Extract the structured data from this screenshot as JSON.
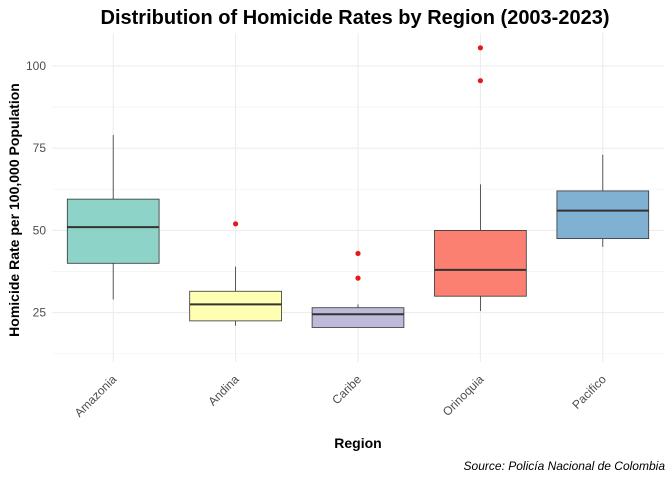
{
  "chart_data": {
    "type": "boxplot",
    "title": "Distribution of Homicide Rates by Region (2003-2023)",
    "xlabel": "Region",
    "ylabel": "Homicide Rate per 100,000 Population",
    "caption": "Source: Policía Nacional de Colombia",
    "ylim": [
      10,
      110
    ],
    "yticks": [
      25,
      50,
      75,
      100
    ],
    "grid": true,
    "legend": "none",
    "outlier_color": "#e31a1c",
    "categories": [
      "Amazonia",
      "Andina",
      "Caribe",
      "Orinoquia",
      "Pacifico"
    ],
    "boxes": [
      {
        "category": "Amazonia",
        "whisker_low": 29,
        "q1": 40,
        "median": 51,
        "q3": 59.5,
        "whisker_high": 79,
        "outliers": [],
        "color": "#8dd3c7"
      },
      {
        "category": "Andina",
        "whisker_low": 21,
        "q1": 22.5,
        "median": 27.5,
        "q3": 31.5,
        "whisker_high": 39,
        "outliers": [
          52
        ],
        "color": "#ffffb3"
      },
      {
        "category": "Caribe",
        "whisker_low": 20.5,
        "q1": 20.5,
        "median": 24.5,
        "q3": 26.5,
        "whisker_high": 27.5,
        "outliers": [
          35.5,
          43
        ],
        "color": "#bebada"
      },
      {
        "category": "Orinoquia",
        "whisker_low": 25.5,
        "q1": 30,
        "median": 38,
        "q3": 50,
        "whisker_high": 64,
        "outliers": [
          95.5,
          105.5
        ],
        "color": "#fb8072"
      },
      {
        "category": "Pacifico",
        "whisker_low": 45,
        "q1": 47.5,
        "median": 56,
        "q3": 62,
        "whisker_high": 73,
        "outliers": [],
        "color": "#80b1d3"
      }
    ]
  }
}
